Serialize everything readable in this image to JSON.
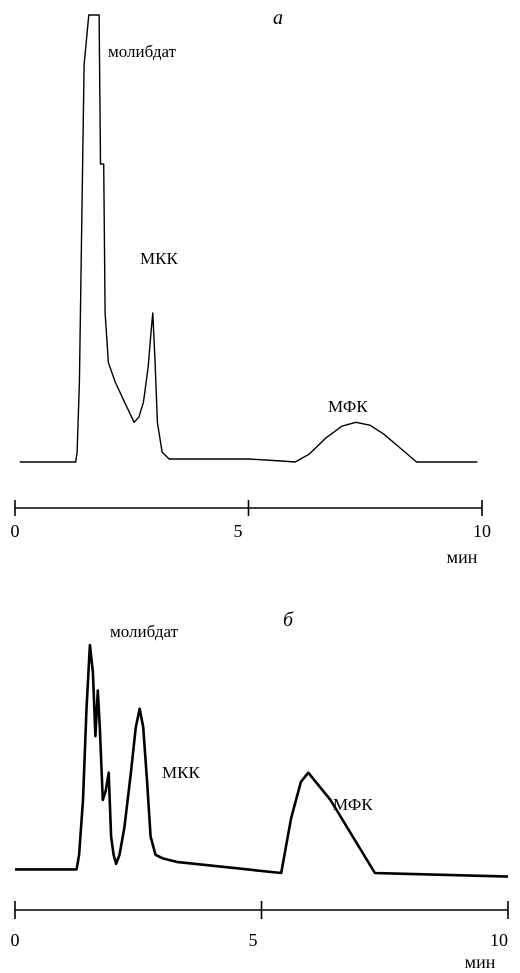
{
  "chart_data": [
    {
      "type": "line",
      "panel_label": "а",
      "xlabel": "мин",
      "xlim": [
        0,
        10
      ],
      "x_ticks": [
        0,
        5,
        10
      ],
      "x_tick_labels": [
        "0",
        "5",
        "10"
      ],
      "grid": false,
      "peaks": [
        {
          "label": "молибдат",
          "x": 1.6
        },
        {
          "label": "МКК",
          "x": 2.95
        },
        {
          "label": "МФК",
          "x": 7.2
        }
      ],
      "series": [
        {
          "x": [
            0.1,
            1.3,
            1.33,
            1.38,
            1.48,
            1.58,
            1.61,
            1.8,
            1.83,
            1.9,
            1.93,
            2.0,
            2.15,
            2.35,
            2.55,
            2.65,
            2.75,
            2.85,
            2.92,
            2.95,
            3.0,
            3.05,
            3.15,
            3.3,
            5.0,
            5.7,
            6.0,
            6.3,
            6.65,
            7.0,
            7.3,
            7.6,
            7.9,
            8.2,
            8.6,
            9.1,
            9.9
          ],
          "y": [
            0,
            0,
            10,
            80,
            400,
            450,
            450,
            450,
            300,
            300,
            150,
            100,
            80,
            60,
            40,
            45,
            60,
            95,
            135,
            150,
            100,
            40,
            10,
            3,
            3,
            1,
            0,
            8,
            24,
            36,
            40,
            37,
            28,
            16,
            0,
            0,
            0
          ]
        }
      ]
    },
    {
      "type": "line",
      "panel_label": "б",
      "xlabel": "мин",
      "xlim": [
        0,
        10
      ],
      "x_ticks": [
        0,
        5,
        10
      ],
      "x_tick_labels": [
        "0",
        "5",
        "10"
      ],
      "grid": false,
      "peaks": [
        {
          "label": "молибдат",
          "x": 1.5
        },
        {
          "label": "МКК",
          "x": 2.55
        },
        {
          "label": "МФК",
          "x": 5.95
        }
      ],
      "series": [
        {
          "x": [
            0.0,
            1.25,
            1.3,
            1.38,
            1.45,
            1.52,
            1.58,
            1.63,
            1.68,
            1.72,
            1.78,
            1.84,
            1.9,
            1.95,
            2.0,
            2.05,
            2.12,
            2.22,
            2.35,
            2.45,
            2.53,
            2.6,
            2.68,
            2.75,
            2.85,
            3.0,
            3.3,
            5.4,
            5.6,
            5.8,
            5.95,
            6.1,
            6.4,
            7.3,
            10.0
          ],
          "y": [
            2,
            2,
            10,
            40,
            90,
            125,
            110,
            75,
            100,
            80,
            40,
            45,
            55,
            20,
            10,
            5,
            10,
            25,
            55,
            80,
            90,
            80,
            50,
            20,
            10,
            8,
            6,
            0,
            30,
            50,
            55,
            50,
            40,
            0,
            -2
          ]
        }
      ]
    }
  ]
}
